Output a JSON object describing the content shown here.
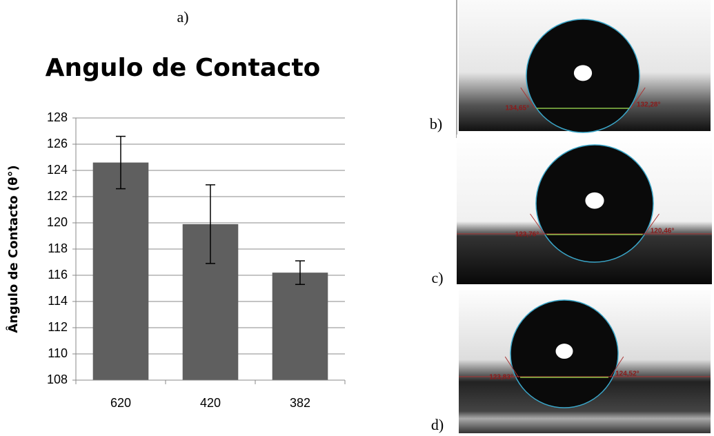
{
  "chart_data": {
    "type": "bar",
    "panel_label": "a)",
    "title": "Angulo de Contacto",
    "y_label": "Ângulo de Contacto (θ°)",
    "categories": [
      "620",
      "420",
      "382"
    ],
    "values": [
      124.6,
      119.9,
      116.2
    ],
    "errors": [
      2.0,
      3.0,
      0.9
    ],
    "color": "#5f5f5f",
    "ylim": [
      108,
      128
    ],
    "yticks": [
      108,
      110,
      112,
      114,
      116,
      118,
      120,
      122,
      124,
      126,
      128
    ],
    "grid": true
  },
  "images": [
    {
      "label": "b)",
      "angles": [
        "134,65°",
        "132,28°"
      ]
    },
    {
      "label": "c)",
      "angles": [
        "123,76°",
        "120,46°"
      ]
    },
    {
      "label": "d)",
      "angles": [
        "123,83°",
        "124,52°"
      ]
    }
  ]
}
